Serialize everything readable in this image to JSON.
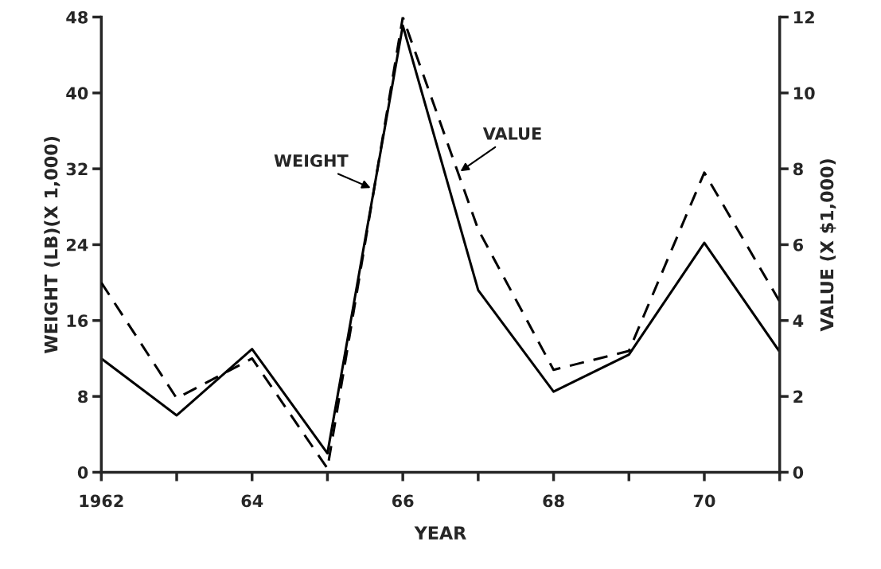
{
  "chart_data": {
    "type": "line",
    "xlabel": "YEAR",
    "ylabel": "WEIGHT (LB)(X 1,000)",
    "y2label": "VALUE (X $1,000)",
    "x": [
      1962,
      1963,
      1964,
      1965,
      1966,
      1967,
      1968,
      1969,
      1970,
      1971
    ],
    "series": [
      {
        "color": "#000000",
        "line_style": "solid",
        "values": [
          12,
          6,
          13,
          2,
          47.1,
          19.2,
          8.5,
          12.4,
          24.2,
          12.7
        ]
      },
      {
        "color": "#000000",
        "line_style": "dashed",
        "axis": "y2",
        "values": [
          5.0,
          1.95,
          3.0,
          0.1,
          12.0,
          6.4,
          2.7,
          3.2,
          7.9,
          4.5
        ]
      }
    ],
    "xlim": [
      1962,
      1971
    ],
    "xticks": [
      {
        "value": 1962,
        "label": "1962"
      },
      {
        "value": 1963,
        "label": null
      },
      {
        "value": 1964,
        "label": "64"
      },
      {
        "value": 1965,
        "label": null
      },
      {
        "value": 1966,
        "label": "66"
      },
      {
        "value": 1967,
        "label": null
      },
      {
        "value": 1968,
        "label": "68"
      },
      {
        "value": 1969,
        "label": null
      },
      {
        "value": 1970,
        "label": "70"
      },
      {
        "value": 1971,
        "label": null
      }
    ],
    "ylim": [
      0,
      48
    ],
    "yticks": [
      0,
      8,
      16,
      24,
      32,
      40,
      48
    ],
    "y2lim": [
      0,
      12
    ],
    "y2ticks": [
      0,
      2,
      4,
      6,
      8,
      10,
      12
    ],
    "annotations": [
      {
        "text": "WEIGHT",
        "x": 1965.6,
        "y": 29.9
      },
      {
        "text": "VALUE",
        "x": 1966.74,
        "y": 31.6
      }
    ],
    "grid": false,
    "legend": false
  }
}
